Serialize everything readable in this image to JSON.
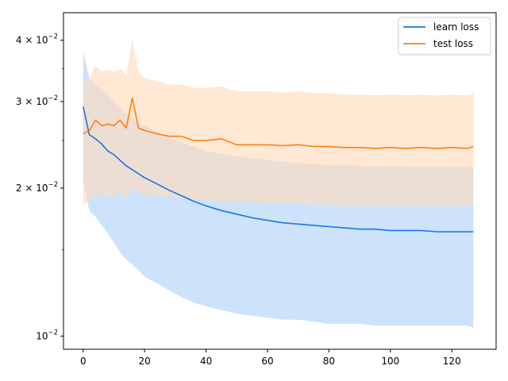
{
  "chart_data": {
    "type": "line",
    "title": "",
    "xlabel": "",
    "ylabel": "",
    "xscale": "linear",
    "yscale": "log",
    "xlim": [
      -6.4,
      134.4
    ],
    "ylim": [
      0.0094,
      0.0455
    ],
    "grid": false,
    "legend": {
      "position": "top-right",
      "entries": [
        "learn loss",
        "test loss"
      ]
    },
    "x_ticks": [
      0,
      20,
      40,
      60,
      80,
      100,
      120
    ],
    "x_tick_labels": [
      "0",
      "20",
      "40",
      "60",
      "80",
      "100",
      "120"
    ],
    "y_ticks": [
      0.01,
      0.02,
      0.03,
      0.04
    ],
    "y_tick_labels": [
      {
        "base": "10",
        "mant": "",
        "exp": "−2"
      },
      {
        "base": "10",
        "mant": "2 × ",
        "exp": "−2"
      },
      {
        "base": "10",
        "mant": "3 × ",
        "exp": "−2"
      },
      {
        "base": "10",
        "mant": "4 × ",
        "exp": "−2"
      }
    ],
    "x": [
      0,
      2,
      4,
      6,
      8,
      10,
      12,
      14,
      16,
      18,
      20,
      24,
      28,
      32,
      36,
      40,
      45,
      50,
      55,
      60,
      65,
      70,
      75,
      80,
      85,
      90,
      95,
      100,
      105,
      110,
      115,
      120,
      125,
      127
    ],
    "series": [
      {
        "name": "learn loss",
        "color": "#1f77b4",
        "line_color": "#1a75e8",
        "band_color": "#c9e1fb",
        "values": [
          0.0293,
          0.0257,
          0.0252,
          0.0246,
          0.0238,
          0.0234,
          0.0228,
          0.0222,
          0.0218,
          0.0214,
          0.021,
          0.0204,
          0.0198,
          0.0193,
          0.0188,
          0.0184,
          0.018,
          0.0177,
          0.0174,
          0.0172,
          0.017,
          0.0169,
          0.0168,
          0.0167,
          0.0166,
          0.0165,
          0.0165,
          0.0164,
          0.0164,
          0.0164,
          0.0163,
          0.0163,
          0.0163,
          0.0163
        ],
        "lower": [
          0.0205,
          0.018,
          0.0175,
          0.0168,
          0.0162,
          0.0155,
          0.0148,
          0.0143,
          0.014,
          0.0136,
          0.0132,
          0.0128,
          0.0124,
          0.012,
          0.0117,
          0.0115,
          0.0113,
          0.0111,
          0.011,
          0.0109,
          0.0108,
          0.0108,
          0.0107,
          0.0106,
          0.0106,
          0.0106,
          0.0105,
          0.0105,
          0.0105,
          0.0105,
          0.0105,
          0.0105,
          0.0105,
          0.0104
        ],
        "upper": [
          0.038,
          0.0335,
          0.0325,
          0.0318,
          0.031,
          0.03,
          0.0292,
          0.0283,
          0.0278,
          0.0272,
          0.0268,
          0.026,
          0.0254,
          0.0248,
          0.0243,
          0.0238,
          0.0235,
          0.0232,
          0.023,
          0.0228,
          0.0226,
          0.0225,
          0.0224,
          0.0223,
          0.0223,
          0.0222,
          0.0222,
          0.0222,
          0.0221,
          0.0221,
          0.0221,
          0.0221,
          0.0221,
          0.022
        ]
      },
      {
        "name": "test loss",
        "color": "#ff7f0e",
        "line_color": "#ff7f0e",
        "band_color": "#ffdcbd",
        "values": [
          0.0258,
          0.0262,
          0.0275,
          0.0268,
          0.027,
          0.0268,
          0.0275,
          0.0265,
          0.0305,
          0.0265,
          0.0262,
          0.0258,
          0.0255,
          0.0255,
          0.025,
          0.025,
          0.0252,
          0.0245,
          0.0245,
          0.0245,
          0.0244,
          0.0245,
          0.0243,
          0.0243,
          0.0242,
          0.0242,
          0.0241,
          0.0242,
          0.0241,
          0.0242,
          0.0241,
          0.0242,
          0.0241,
          0.0243
        ],
        "lower": [
          0.0185,
          0.0188,
          0.0196,
          0.0192,
          0.0193,
          0.0192,
          0.0196,
          0.019,
          0.02,
          0.0195,
          0.0194,
          0.0193,
          0.0192,
          0.0191,
          0.019,
          0.0189,
          0.0188,
          0.0188,
          0.0187,
          0.0186,
          0.0186,
          0.0186,
          0.0185,
          0.0185,
          0.0184,
          0.0184,
          0.0184,
          0.0184,
          0.0184,
          0.0184,
          0.0184,
          0.0184,
          0.0184,
          0.0185
        ],
        "upper": [
          0.033,
          0.0335,
          0.0355,
          0.0345,
          0.0348,
          0.0345,
          0.035,
          0.034,
          0.04,
          0.0345,
          0.0335,
          0.033,
          0.0325,
          0.0325,
          0.032,
          0.032,
          0.0322,
          0.0315,
          0.0315,
          0.0315,
          0.0313,
          0.0315,
          0.0312,
          0.0312,
          0.031,
          0.031,
          0.0309,
          0.031,
          0.0309,
          0.031,
          0.0309,
          0.031,
          0.0309,
          0.0311
        ]
      }
    ]
  }
}
